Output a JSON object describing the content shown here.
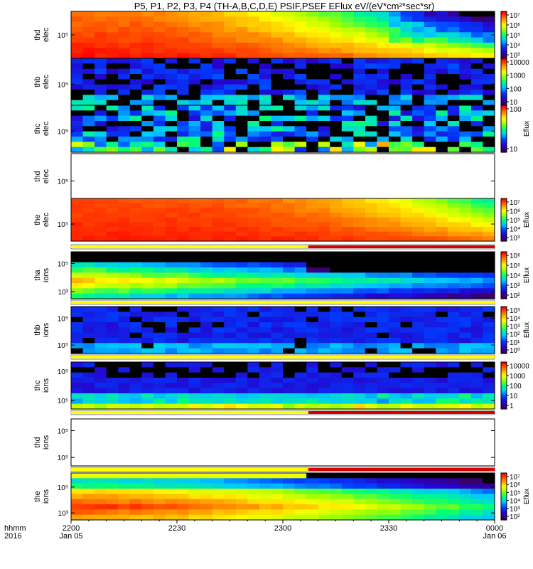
{
  "title": "P5, P1, P2, P3, P4 (TH-A,B,C,D,E) PSIF,PSEF EFlux eV/(eV*cm²*sec*sr)",
  "footer": {
    "time_label": "hhmm",
    "year_label": "2016",
    "x_ticks": [
      "2200",
      "2230",
      "2300",
      "2330",
      "0000"
    ],
    "x_dates": [
      "Jan 05",
      "Jan 06"
    ]
  },
  "colors": {
    "flag_yellow": "#ffff00",
    "flag_red": "#d40000",
    "nodata_black": "#000000"
  },
  "chart_data": {
    "type": "heatmap",
    "x_range": [
      "2016-01-05 22:00",
      "2016-01-06 00:00"
    ],
    "y_scale": "log",
    "colormap": "rainbow",
    "colorbar_title": "Eflux",
    "panels": [
      {
        "ylabel": [
          "thd",
          "elec"
        ],
        "yticks": [
          "10⁵"
        ],
        "cbar": [
          "10⁷",
          "10⁶",
          "10⁵",
          "10⁴",
          "10³"
        ],
        "cbar_title": "",
        "has_data": true,
        "pattern": "elec_hot",
        "ytick_frac": [
          0.5
        ]
      },
      {
        "ylabel": [
          "thb",
          "elec"
        ],
        "yticks": [
          "10⁵"
        ],
        "cbar": [
          "10000",
          "1000",
          "100",
          "10"
        ],
        "cbar_title": "",
        "has_data": true,
        "pattern": "sparse_low",
        "ytick_frac": [
          0.55
        ]
      },
      {
        "ylabel": [
          "thc",
          "elec"
        ],
        "yticks": [
          "10⁵"
        ],
        "cbar": [
          "100",
          "10"
        ],
        "cbar_title": "Eflux",
        "has_data": true,
        "pattern": "sparse_mixed",
        "ytick_frac": [
          0.55
        ]
      },
      {
        "ylabel": [
          "thd",
          "elec"
        ],
        "yticks": [
          "10⁵"
        ],
        "cbar": [],
        "cbar_title": "",
        "has_data": false,
        "pattern": "none",
        "ytick_frac": [
          0.6
        ]
      },
      {
        "ylabel": [
          "the",
          "elec"
        ],
        "yticks": [
          "10⁵"
        ],
        "cbar": [
          "10⁷",
          "10⁶",
          "10⁵",
          "10⁴",
          "10³"
        ],
        "cbar_title": "Eflux",
        "has_data": true,
        "pattern": "elec_hot2",
        "ytick_frac": [
          0.6
        ]
      },
      {
        "ylabel": [
          "tha",
          "ions"
        ],
        "yticks": [
          "10⁵",
          "10³"
        ],
        "cbar": [
          "10⁶",
          "10⁵",
          "10⁴",
          "10³",
          "10²"
        ],
        "cbar_title": "Eflux",
        "has_data": true,
        "pattern": "ions_a",
        "ytick_frac": [
          0.25,
          0.85
        ]
      },
      {
        "ylabel": [
          "thb",
          "ions"
        ],
        "yticks": [
          "10⁵",
          "10⁵"
        ],
        "cbar": [
          "10⁵",
          "10⁴",
          "10³",
          "10²",
          "10¹",
          "10⁰"
        ],
        "cbar_title": "Eflux",
        "has_data": true,
        "pattern": "ions_b",
        "ytick_frac": [
          0.25,
          0.82
        ]
      },
      {
        "ylabel": [
          "thc",
          "ions"
        ],
        "yticks": [
          "10⁵",
          "10⁵"
        ],
        "cbar": [
          "10000",
          "1000",
          "100",
          "10",
          "1"
        ],
        "cbar_title": "",
        "has_data": true,
        "pattern": "ions_c",
        "ytick_frac": [
          0.2,
          0.82
        ]
      },
      {
        "ylabel": [
          "thd",
          "ions"
        ],
        "yticks": [
          "10⁵",
          "10⁵"
        ],
        "cbar": [],
        "cbar_title": "",
        "has_data": false,
        "pattern": "none",
        "ytick_frac": [
          0.25,
          0.82
        ]
      },
      {
        "ylabel": [
          "the",
          "ions"
        ],
        "yticks": [
          "10⁵",
          "10³"
        ],
        "cbar": [
          "10⁷",
          "10⁶",
          "10⁵",
          "10⁴",
          "10³",
          "10²"
        ],
        "cbar_title": "Eflux",
        "has_data": true,
        "pattern": "ions_e",
        "ytick_frac": [
          0.3,
          0.85
        ]
      }
    ],
    "flag_bars": [
      {
        "after_panel": 4,
        "yellow_until": 0.56,
        "red_from": 0.56
      },
      {
        "after_panel": 5,
        "yellow_until": 1.0,
        "red_from": 1.0
      },
      {
        "after_panel": 6,
        "yellow_until": 1.0,
        "red_from": 1.0
      },
      {
        "after_panel": 7,
        "yellow_until": 0.56,
        "red_from": 0.56
      },
      {
        "after_panel": 8,
        "yellow_until": 0.56,
        "red_from": 0.56
      }
    ]
  }
}
